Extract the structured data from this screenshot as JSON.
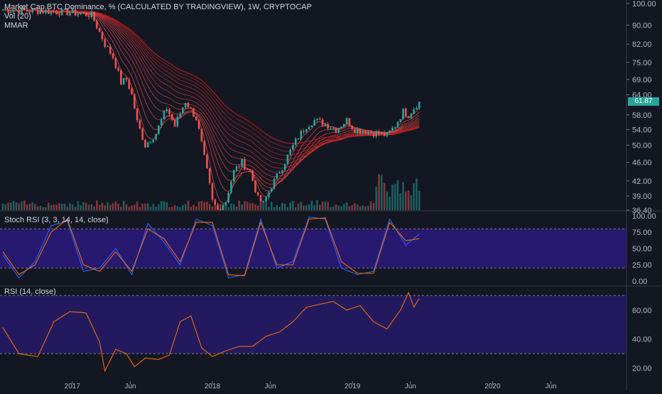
{
  "header": {
    "title": "Market Cap BTC Dominance, % (CALCULATED BY TRADINGVIEW), 1W, CRYPTOCAP",
    "volume_label": "Vol (20)",
    "mmar_label": "MMAR"
  },
  "price_badge": "61.87",
  "colors": {
    "background": "#131722",
    "up": "#26a69a",
    "down": "#ef5350",
    "ribbon_high": "#b71c1c",
    "ribbon_low": "#1b5e20",
    "stoch_k": "#2962ff",
    "stoch_d": "#ef6c00",
    "rsi_line": "#ef6c00",
    "band": "#311b92",
    "grid": "#2a2e39"
  },
  "chart_data": [
    {
      "type": "candlestick",
      "title": "Market Cap BTC Dominance, % (CALCULATED BY TRADINGVIEW), 1W, CRYPTOCAP",
      "unit": "%",
      "ylim": [
        36.4,
        100
      ],
      "y_scale": "log",
      "yticks": [
        "100.00",
        "90.00",
        "82.00",
        "75.00",
        "69.00",
        "64.00",
        "58.00",
        "54.00",
        "50.00",
        "46.00",
        "42.00",
        "39.00",
        "36.40"
      ],
      "last_value": 61.87,
      "close_path": [
        [
          "2016-07-04",
          97.0
        ],
        [
          "2016-10-01",
          96.5
        ],
        [
          "2017-01-01",
          95.6
        ],
        [
          "2017-02-20",
          94.5
        ],
        [
          "2017-03-13",
          87.0
        ],
        [
          "2017-03-27",
          82.0
        ],
        [
          "2017-04-17",
          77.0
        ],
        [
          "2017-05-08",
          68.0
        ],
        [
          "2017-05-22",
          69.0
        ],
        [
          "2017-06-05",
          64.0
        ],
        [
          "2017-06-19",
          56.0
        ],
        [
          "2017-07-10",
          50.0
        ],
        [
          "2017-08-07",
          53.0
        ],
        [
          "2017-09-04",
          60.0
        ],
        [
          "2017-09-25",
          55.0
        ],
        [
          "2017-10-23",
          62.0
        ],
        [
          "2017-11-20",
          57.0
        ],
        [
          "2017-12-11",
          47.0
        ],
        [
          "2018-01-01",
          38.0
        ],
        [
          "2018-01-15",
          36.4
        ],
        [
          "2018-02-05",
          38.0
        ],
        [
          "2018-02-26",
          44.0
        ],
        [
          "2018-03-19",
          46.0
        ],
        [
          "2018-04-09",
          44.0
        ],
        [
          "2018-04-30",
          38.5
        ],
        [
          "2018-05-14",
          37.5
        ],
        [
          "2018-06-04",
          41.0
        ],
        [
          "2018-07-02",
          45.0
        ],
        [
          "2018-08-06",
          51.0
        ],
        [
          "2018-09-03",
          55.0
        ],
        [
          "2018-09-24",
          56.5
        ],
        [
          "2018-10-22",
          55.5
        ],
        [
          "2018-11-19",
          54.0
        ],
        [
          "2018-12-17",
          56.5
        ],
        [
          "2019-01-07",
          54.0
        ],
        [
          "2019-02-04",
          53.5
        ],
        [
          "2019-03-04",
          53.0
        ],
        [
          "2019-04-01",
          52.5
        ],
        [
          "2019-04-22",
          55.0
        ],
        [
          "2019-05-13",
          59.0
        ],
        [
          "2019-05-27",
          58.0
        ],
        [
          "2019-06-10",
          60.0
        ],
        [
          "2019-06-24",
          61.87
        ]
      ]
    },
    {
      "type": "line",
      "title": "Stoch RSI (3, 3, 14, 14, close)",
      "ylim": [
        0,
        100
      ],
      "yticks": [
        "100.00",
        "75.00",
        "50.00",
        "25.00",
        "0.00"
      ],
      "bands": [
        20,
        80
      ],
      "series": [
        {
          "name": "K",
          "x": [
            "2016-07-04",
            "2016-08-15",
            "2016-09-26",
            "2016-11-07",
            "2016-12-19",
            "2017-01-30",
            "2017-03-13",
            "2017-04-24",
            "2017-06-05",
            "2017-07-17",
            "2017-08-28",
            "2017-10-09",
            "2017-11-20",
            "2018-01-01",
            "2018-02-12",
            "2018-03-26",
            "2018-05-07",
            "2018-06-18",
            "2018-07-30",
            "2018-09-10",
            "2018-10-22",
            "2018-12-03",
            "2019-01-14",
            "2019-02-25",
            "2019-04-08",
            "2019-05-20",
            "2019-06-24"
          ],
          "values": [
            40,
            5,
            30,
            85,
            92,
            15,
            20,
            50,
            10,
            88,
            60,
            25,
            95,
            85,
            5,
            10,
            95,
            20,
            30,
            98,
            95,
            20,
            10,
            15,
            95,
            55,
            72
          ]
        },
        {
          "name": "D",
          "x": [
            "2016-07-04",
            "2016-08-15",
            "2016-09-26",
            "2016-11-07",
            "2016-12-19",
            "2017-01-30",
            "2017-03-13",
            "2017-04-24",
            "2017-06-05",
            "2017-07-17",
            "2017-08-28",
            "2017-10-09",
            "2017-11-20",
            "2018-01-01",
            "2018-02-12",
            "2018-03-26",
            "2018-05-07",
            "2018-06-18",
            "2018-07-30",
            "2018-09-10",
            "2018-10-22",
            "2018-12-03",
            "2019-01-14",
            "2019-02-25",
            "2019-04-08",
            "2019-05-20",
            "2019-06-24"
          ],
          "values": [
            45,
            10,
            25,
            75,
            95,
            25,
            15,
            45,
            15,
            80,
            65,
            30,
            90,
            90,
            10,
            8,
            90,
            25,
            25,
            95,
            97,
            30,
            12,
            12,
            90,
            62,
            65
          ]
        }
      ]
    },
    {
      "type": "line",
      "title": "RSI (14, close)",
      "ylim": [
        12,
        76
      ],
      "yticks": [
        "60.00",
        "40.00",
        "20.00"
      ],
      "bands": [
        30,
        70
      ],
      "series": [
        {
          "name": "RSI",
          "x": [
            "2016-07-04",
            "2016-08-15",
            "2016-10-03",
            "2016-11-14",
            "2016-12-26",
            "2017-02-06",
            "2017-03-13",
            "2017-03-27",
            "2017-04-24",
            "2017-05-22",
            "2017-06-12",
            "2017-07-10",
            "2017-08-14",
            "2017-09-11",
            "2017-10-09",
            "2017-11-06",
            "2017-12-04",
            "2018-01-01",
            "2018-02-05",
            "2018-03-12",
            "2018-04-16",
            "2018-05-21",
            "2018-06-25",
            "2018-07-30",
            "2018-09-03",
            "2018-10-08",
            "2018-11-12",
            "2018-12-17",
            "2019-01-21",
            "2019-02-25",
            "2019-04-01",
            "2019-05-06",
            "2019-05-27",
            "2019-06-10",
            "2019-06-24"
          ],
          "values": [
            48,
            30,
            28,
            52,
            59,
            58,
            38,
            18,
            33,
            30,
            21,
            27,
            26,
            29,
            52,
            56,
            34,
            28,
            32,
            35,
            35,
            42,
            45,
            52,
            62,
            64,
            66,
            60,
            63,
            52,
            47,
            60,
            72,
            62,
            68
          ]
        }
      ]
    },
    {
      "type": "bar",
      "title": "Vol (20)",
      "note": "volume histogram in price pane",
      "x_axis_labels": [
        "2017",
        "Jun",
        "2018",
        "Jun",
        "2019",
        "Jun",
        "2020",
        "Jun"
      ]
    }
  ]
}
